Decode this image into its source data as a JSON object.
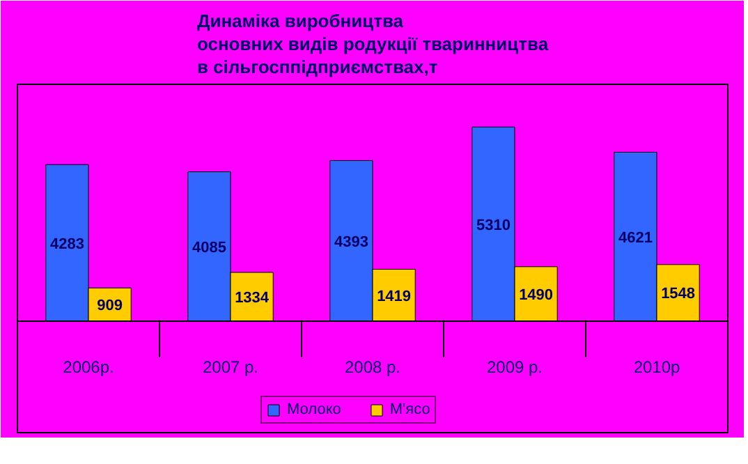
{
  "chart_data": {
    "type": "bar",
    "title": "Динаміка виробництва\nосновних видів родукції тваринництва\nв сільгосппідприємствах,т",
    "categories": [
      "2006р.",
      "2007 р.",
      "2008 р.",
      "2009 р.",
      "2010р"
    ],
    "series": [
      {
        "name": "Молоко",
        "color": "#3366ff",
        "values": [
          4283,
          4085,
          4393,
          5310,
          4621
        ]
      },
      {
        "name": "М'ясо",
        "color": "#ffcc00",
        "values": [
          909,
          1334,
          1419,
          1490,
          1548
        ]
      }
    ],
    "data_labels": true,
    "legend": "bottom",
    "grid": false
  }
}
